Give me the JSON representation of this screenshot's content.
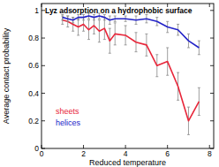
{
  "chart_data": {
    "type": "line",
    "title": "Lyz adsorption on a hydrophobic surface",
    "x_label": "Reduced temperature",
    "y_label": "Average contact probability",
    "x": [
      1.0,
      1.25,
      1.5,
      1.75,
      2.0,
      2.25,
      2.5,
      2.75,
      3.0,
      3.25,
      3.5,
      4.0,
      4.5,
      5.0,
      5.5,
      6.0,
      6.5,
      7.0,
      7.5
    ],
    "series": [
      {
        "name": "sheets",
        "color": "#e8263a",
        "values": [
          0.93,
          0.92,
          0.9,
          0.88,
          0.9,
          0.86,
          0.89,
          0.85,
          0.87,
          0.78,
          0.83,
          0.82,
          0.77,
          0.75,
          0.6,
          0.63,
          0.45,
          0.2,
          0.34
        ],
        "errors": [
          0.03,
          0.04,
          0.05,
          0.06,
          0.05,
          0.07,
          0.06,
          0.08,
          0.08,
          0.09,
          0.08,
          0.07,
          0.07,
          0.08,
          0.08,
          0.1,
          0.1,
          0.1,
          0.1
        ]
      },
      {
        "name": "helices",
        "color": "#2323c8",
        "values": [
          0.95,
          0.94,
          0.93,
          0.95,
          0.95,
          0.96,
          0.95,
          0.96,
          0.95,
          0.93,
          0.94,
          0.94,
          0.93,
          0.94,
          0.92,
          0.88,
          0.86,
          0.78,
          0.73
        ],
        "errors": [
          0.02,
          0.02,
          0.02,
          0.02,
          0.02,
          0.02,
          0.02,
          0.02,
          0.02,
          0.03,
          0.02,
          0.02,
          0.03,
          0.03,
          0.03,
          0.04,
          0.04,
          0.05,
          0.05
        ]
      }
    ],
    "xlim": [
      0,
      8.2
    ],
    "xticks": [
      0,
      2,
      4,
      6,
      8
    ],
    "ylim": [
      0,
      1.05
    ],
    "yticks": [
      0,
      0.2,
      0.4,
      0.6,
      0.8,
      1
    ],
    "grid": false,
    "legend": "lower left"
  }
}
